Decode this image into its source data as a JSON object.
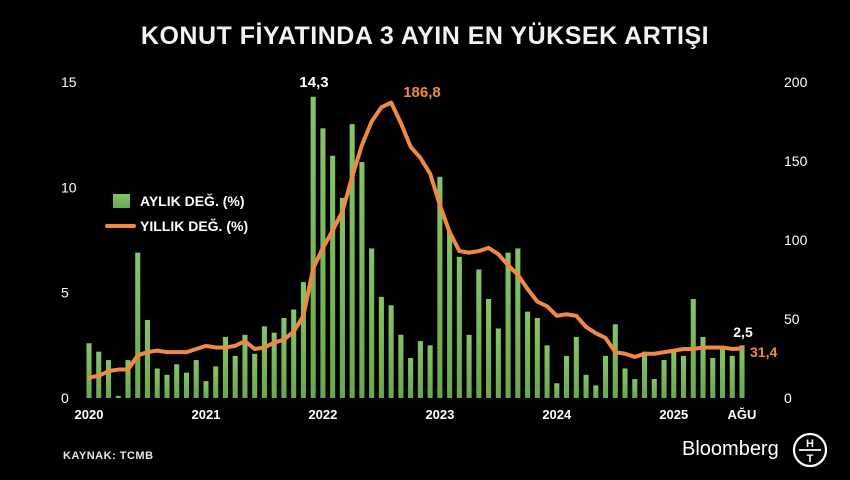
{
  "title": "KONUT FİYATINDA 3 AYIN EN YÜKSEK ARTIŞI",
  "source": "KAYNAK: TCMB",
  "brand": {
    "name": "Bloomberg",
    "logo_letters": [
      "H",
      "T"
    ]
  },
  "colors": {
    "bars": "#6aa84f",
    "line": "#f08a43",
    "text": "#ffffff",
    "background": "#000000"
  },
  "chart_data": {
    "type": "bar",
    "x": [
      "2020-01",
      "2020-02",
      "2020-03",
      "2020-04",
      "2020-05",
      "2020-06",
      "2020-07",
      "2020-08",
      "2020-09",
      "2020-10",
      "2020-11",
      "2020-12",
      "2021-01",
      "2021-02",
      "2021-03",
      "2021-04",
      "2021-05",
      "2021-06",
      "2021-07",
      "2021-08",
      "2021-09",
      "2021-10",
      "2021-11",
      "2021-12",
      "2022-01",
      "2022-02",
      "2022-03",
      "2022-04",
      "2022-05",
      "2022-06",
      "2022-07",
      "2022-08",
      "2022-09",
      "2022-10",
      "2022-11",
      "2022-12",
      "2023-01",
      "2023-02",
      "2023-03",
      "2023-04",
      "2023-05",
      "2023-06",
      "2023-07",
      "2023-08",
      "2023-09",
      "2023-10",
      "2023-11",
      "2023-12",
      "2024-01",
      "2024-02",
      "2024-03",
      "2024-04",
      "2024-05",
      "2024-06",
      "2024-07",
      "2024-08",
      "2024-09",
      "2024-10",
      "2024-11",
      "2024-12",
      "2025-01",
      "2025-02",
      "2025-03",
      "2025-04",
      "2025-05",
      "2025-06",
      "2025-07",
      "2025-08"
    ],
    "x_tick_labels": [
      "2020",
      "2021",
      "2022",
      "2023",
      "2024",
      "2025",
      "AĞU"
    ],
    "series": [
      {
        "name": "AYLIK DEĞ. (%)",
        "axis": "left",
        "type": "bar",
        "values": [
          2.6,
          2.2,
          1.8,
          0.1,
          1.8,
          6.9,
          3.7,
          1.4,
          1.1,
          1.6,
          1.2,
          1.8,
          0.8,
          1.5,
          2.9,
          2.0,
          3.0,
          2.1,
          3.4,
          3.1,
          3.8,
          4.2,
          5.5,
          14.3,
          12.8,
          11.5,
          9.5,
          13.0,
          11.2,
          7.1,
          4.8,
          4.4,
          3.0,
          1.9,
          2.7,
          2.5,
          10.5,
          7.9,
          6.7,
          3.0,
          6.1,
          4.7,
          3.3,
          6.9,
          7.1,
          4.1,
          3.8,
          2.5,
          0.7,
          2.0,
          2.9,
          1.1,
          0.6,
          2.0,
          3.5,
          1.4,
          0.9,
          2.2,
          0.9,
          1.8,
          2.3,
          2.0,
          4.7,
          2.9,
          1.9,
          2.4,
          2.0,
          2.5
        ]
      },
      {
        "name": "YILLIK DEĞ. (%)",
        "axis": "right",
        "type": "line",
        "values": [
          13,
          14,
          17,
          18,
          18,
          27,
          29,
          30,
          29,
          29,
          29,
          31,
          33,
          32,
          32,
          33,
          36,
          31,
          32,
          35,
          37,
          42,
          52,
          82,
          95,
          106,
          118,
          140,
          160,
          175,
          184,
          187,
          174,
          159,
          152,
          142,
          122,
          105,
          93,
          92,
          93,
          95,
          91,
          84,
          78,
          69,
          61,
          58,
          52,
          53,
          52,
          45,
          41,
          38,
          29,
          28,
          26,
          28,
          28,
          29,
          30,
          31,
          31,
          32,
          32,
          32,
          31,
          31.4
        ]
      }
    ],
    "annotations": [
      "14,3",
      "186,8",
      "2,5",
      "31,4"
    ],
    "y_left": {
      "ticks": [
        "0",
        "5",
        "10",
        "15"
      ],
      "range": [
        0,
        15
      ]
    },
    "y_right": {
      "ticks": [
        "0",
        "50",
        "100",
        "150",
        "200"
      ],
      "range": [
        0,
        200
      ]
    },
    "legend": {
      "placement": "left"
    }
  }
}
